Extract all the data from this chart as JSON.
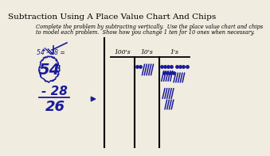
{
  "title": "Subtraction Using A Place Value Chart And Chips",
  "subtitle_line1": "Complete the problem by subtracting vertically.  Use the place value chart and chips",
  "subtitle_line2": "to model each problem.  Show how you change 1 ten for 10 ones when necessary.",
  "problem": "54 - 28 =",
  "subtrahend": "- 28",
  "result": "26",
  "col_headers": [
    "100's",
    "10's",
    "1's"
  ],
  "bg_color": "#f0ece0",
  "handwriting_color": "#1a1a9c",
  "title_fontsize": 7.5,
  "subtitle_fontsize": 4.8
}
